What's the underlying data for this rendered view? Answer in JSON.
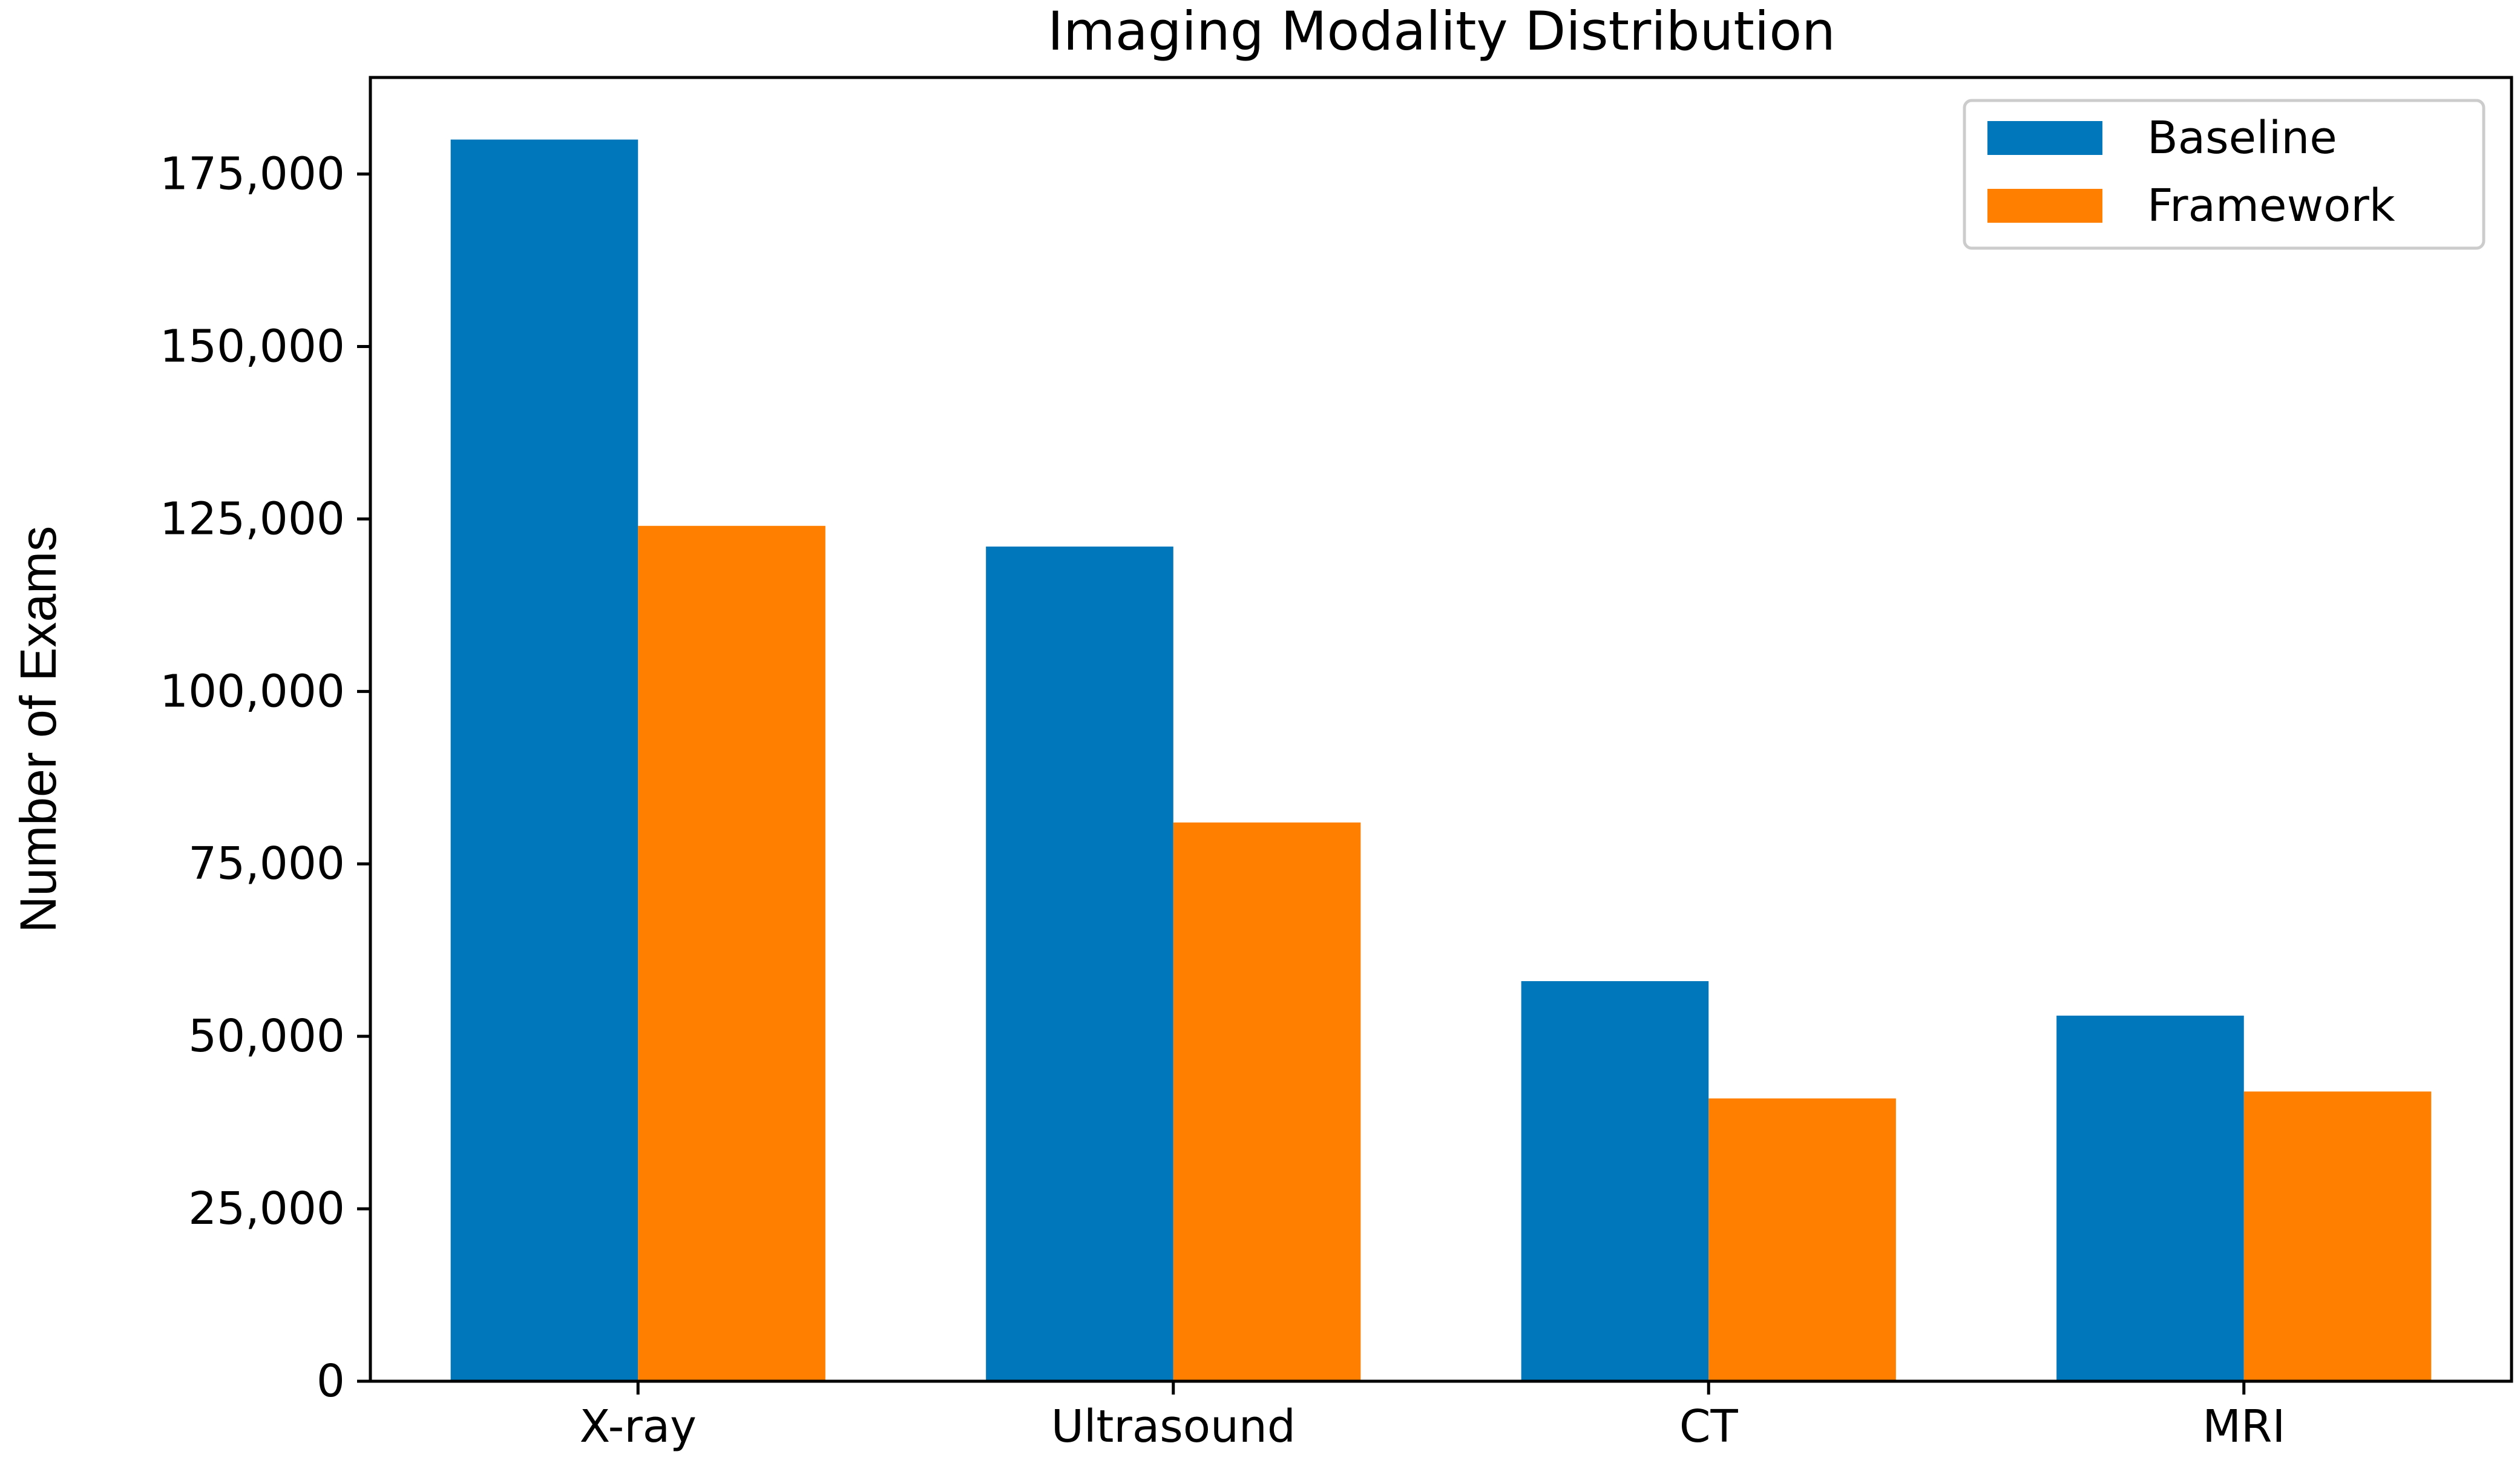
{
  "chart_data": {
    "type": "bar",
    "title": "Imaging Modality Distribution",
    "xlabel": "",
    "ylabel": "Number of Exams",
    "categories": [
      "X-ray",
      "Ultrasound",
      "CT",
      "MRI"
    ],
    "series": [
      {
        "name": "Baseline",
        "values": [
          180000,
          121000,
          58000,
          53000
        ],
        "color": "#0077bb"
      },
      {
        "name": "Framework",
        "values": [
          124000,
          81000,
          41000,
          42000
        ],
        "color": "#ff8000"
      }
    ],
    "ylim": [
      0,
      189000
    ],
    "yticks": [
      0,
      25000,
      50000,
      75000,
      100000,
      125000,
      150000,
      175000
    ],
    "ytick_labels": [
      "0",
      "25,000",
      "50,000",
      "75,000",
      "100,000",
      "125,000",
      "150,000",
      "175,000"
    ],
    "grid": false,
    "legend_position": "top-right"
  }
}
